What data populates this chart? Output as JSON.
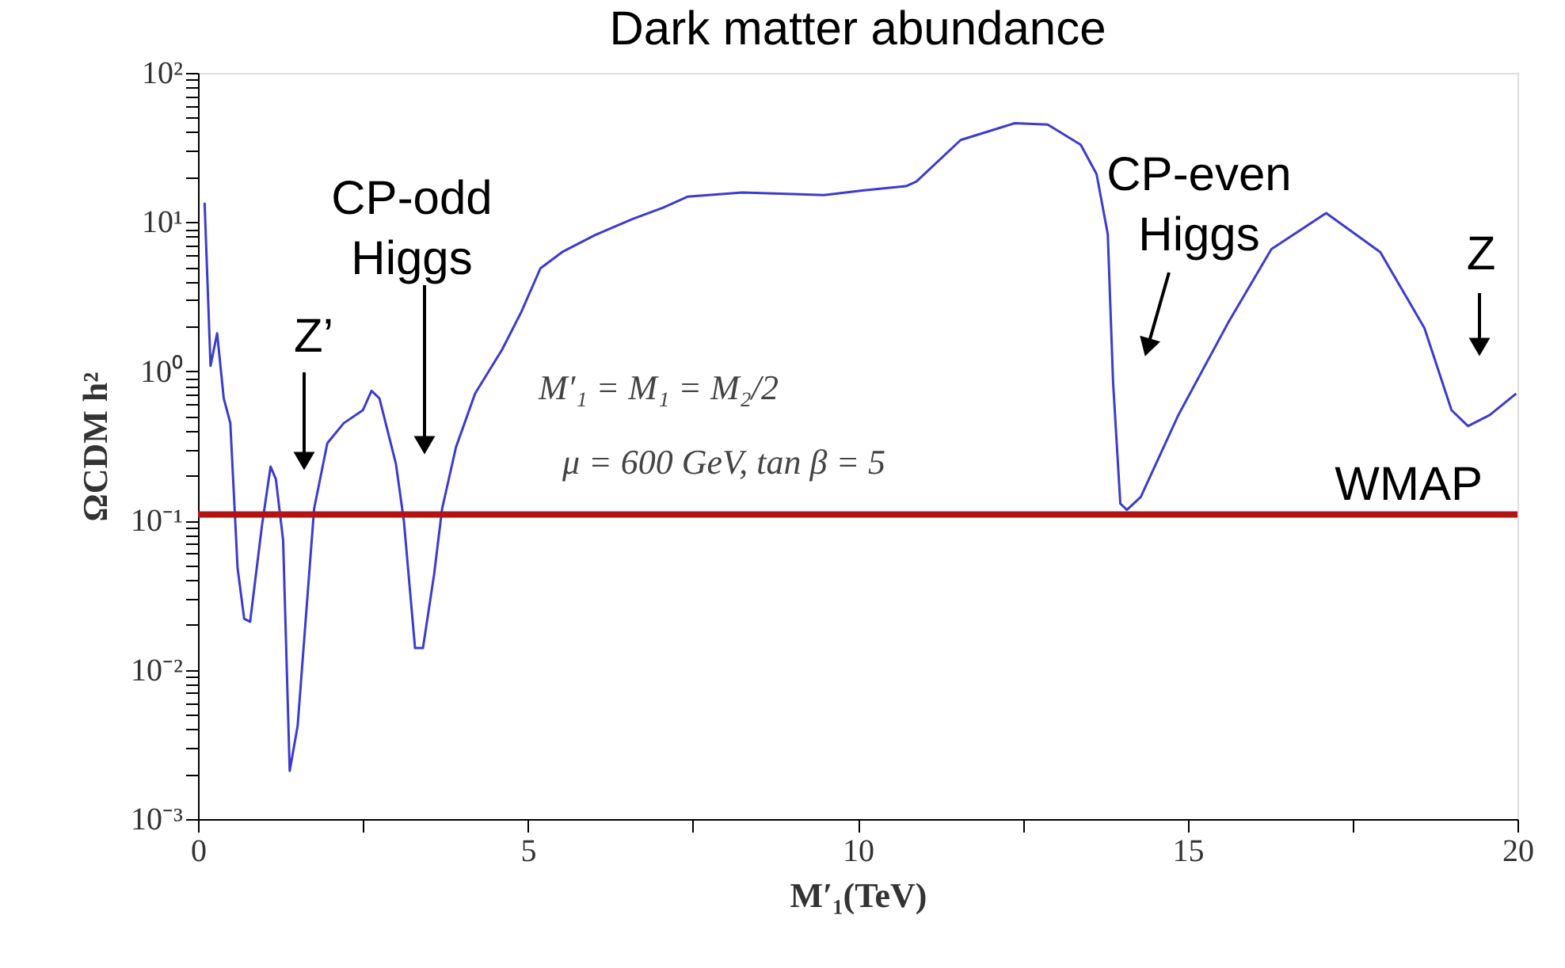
{
  "chart_data": {
    "type": "line",
    "title": "Dark matter abundance",
    "xlabel": "M′₁(TeV)",
    "ylabel": "ΩCDM h²",
    "log": "y",
    "grid": false,
    "xlim": [
      0,
      20
    ],
    "ylim": [
      0.001,
      100
    ],
    "xticks": [
      0,
      {
        "value": 2.5,
        "label": null
      },
      5,
      {
        "value": 7.5,
        "label": null
      },
      10,
      {
        "value": 12.5,
        "label": null
      },
      15,
      {
        "value": 17.5,
        "label": null
      },
      20
    ],
    "yticks": [
      {
        "value": 0.001,
        "label": "10⁻³"
      },
      {
        "value": 0.002,
        "label": null
      },
      {
        "value": 0.003,
        "label": null
      },
      {
        "value": 0.004,
        "label": null
      },
      {
        "value": 0.005,
        "label": null
      },
      {
        "value": 0.006,
        "label": null
      },
      {
        "value": 0.007,
        "label": null
      },
      {
        "value": 0.008,
        "label": null
      },
      {
        "value": 0.009,
        "label": null
      },
      {
        "value": 0.01,
        "label": "10⁻²"
      },
      {
        "value": 0.02,
        "label": null
      },
      {
        "value": 0.03,
        "label": null
      },
      {
        "value": 0.04,
        "label": null
      },
      {
        "value": 0.05,
        "label": null
      },
      {
        "value": 0.06,
        "label": null
      },
      {
        "value": 0.07,
        "label": null
      },
      {
        "value": 0.08,
        "label": null
      },
      {
        "value": 0.09,
        "label": null
      },
      {
        "value": 0.1,
        "label": "10⁻¹"
      },
      {
        "value": 0.2,
        "label": null
      },
      {
        "value": 0.3,
        "label": null
      },
      {
        "value": 0.4,
        "label": null
      },
      {
        "value": 0.5,
        "label": null
      },
      {
        "value": 0.6,
        "label": null
      },
      {
        "value": 0.7,
        "label": null
      },
      {
        "value": 0.8,
        "label": null
      },
      {
        "value": 0.9,
        "label": null
      },
      {
        "value": 1,
        "label": "10⁰"
      },
      {
        "value": 2,
        "label": null
      },
      {
        "value": 3,
        "label": null
      },
      {
        "value": 4,
        "label": null
      },
      {
        "value": 5,
        "label": null
      },
      {
        "value": 6,
        "label": null
      },
      {
        "value": 7,
        "label": null
      },
      {
        "value": 8,
        "label": null
      },
      {
        "value": 9,
        "label": null
      },
      {
        "value": 10,
        "label": "10¹"
      },
      {
        "value": 20,
        "label": null
      },
      {
        "value": 30,
        "label": null
      },
      {
        "value": 40,
        "label": null
      },
      {
        "value": 50,
        "label": null
      },
      {
        "value": 60,
        "label": null
      },
      {
        "value": 70,
        "label": null
      },
      {
        "value": 80,
        "label": null
      },
      {
        "value": 90,
        "label": null
      },
      {
        "value": 100,
        "label": "10²"
      }
    ],
    "marker": "none",
    "line_style": "solid",
    "series": [
      {
        "color": "#3b3bd0",
        "x": [
          0.1,
          0.19,
          0.29,
          0.39,
          0.49,
          0.6,
          0.7,
          0.79,
          0.97,
          1.1,
          1.18,
          1.29,
          1.39,
          1.51,
          1.76,
          1.96,
          2.21,
          2.5,
          2.63,
          2.75,
          3.0,
          3.12,
          3.29,
          3.41,
          3.58,
          3.7,
          3.91,
          4.2,
          4.61,
          4.9,
          5.19,
          5.52,
          6.02,
          6.59,
          7.05,
          7.42,
          8.25,
          9.49,
          10.07,
          10.73,
          10.89,
          11.56,
          12.38,
          12.88,
          13.38,
          13.62,
          13.79,
          13.87,
          13.98,
          14.08,
          14.29,
          14.86,
          15.61,
          16.27,
          17.1,
          17.92,
          18.59,
          19.0,
          19.25,
          19.58,
          19.98
        ],
        "values": [
          13.5,
          1.09,
          1.8,
          0.66,
          0.45,
          0.048,
          0.022,
          0.021,
          0.093,
          0.23,
          0.19,
          0.074,
          0.0021,
          0.0042,
          0.12,
          0.33,
          0.45,
          0.55,
          0.74,
          0.66,
          0.24,
          0.1,
          0.014,
          0.014,
          0.044,
          0.12,
          0.31,
          0.71,
          1.4,
          2.5,
          4.9,
          6.3,
          8.2,
          10.5,
          12.5,
          14.8,
          15.8,
          15.2,
          16.3,
          17.4,
          18.7,
          35.5,
          46,
          45,
          33,
          21,
          8.3,
          0.85,
          0.13,
          0.118,
          0.144,
          0.51,
          2.1,
          6.6,
          11.5,
          6.3,
          1.95,
          0.55,
          0.43,
          0.51,
          0.71
        ]
      }
    ],
    "ref_lines": [
      {
        "axis": "y",
        "value": 0.11,
        "label": "WMAP",
        "color": "#b01515"
      }
    ],
    "annotations": [
      "Z’",
      "CP-odd\nHiggs",
      "CP-even\nHiggs",
      "Z",
      "M′₁ = M₁ = M₂/2",
      "μ = 600 GeV, tan β = 5"
    ]
  }
}
